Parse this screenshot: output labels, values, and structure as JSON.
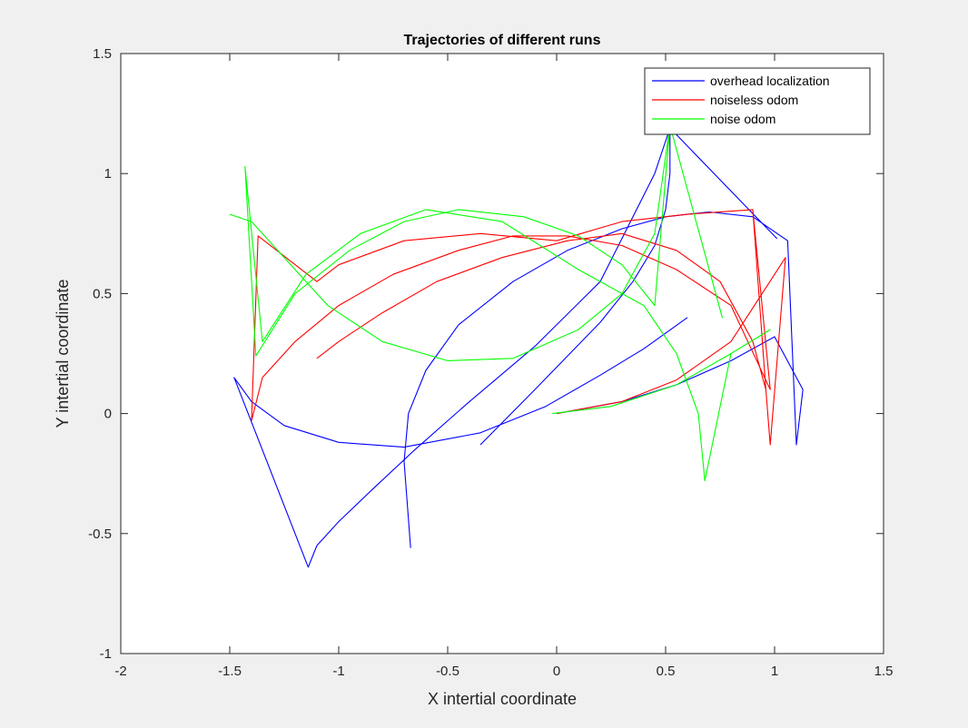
{
  "chart_data": {
    "type": "line",
    "title": "Trajectories of different runs",
    "xlabel": "X intertial coordinate",
    "ylabel": "Y intertial coordinate",
    "xlim": [
      -2,
      1.5
    ],
    "ylim": [
      -1,
      1.5
    ],
    "xticks": [
      -2,
      -1.5,
      -1,
      -0.5,
      0,
      0.5,
      1,
      1.5
    ],
    "yticks": [
      -1,
      -0.5,
      0,
      0.5,
      1,
      1.5
    ],
    "xtick_labels": [
      "-2",
      "-1.5",
      "-1",
      "-0.5",
      "0",
      "0.5",
      "1",
      "1.5"
    ],
    "ytick_labels": [
      "-1",
      "-0.5",
      "0",
      "0.5",
      "1",
      "1.5"
    ],
    "grid": false,
    "legend": "top-right",
    "series": [
      {
        "name": "overhead localization",
        "color": "#0000ff",
        "x": [
          0.0,
          0.3,
          0.55,
          0.8,
          1.0,
          1.13,
          1.1,
          1.06,
          0.9,
          0.7,
          0.5,
          0.3,
          0.05,
          -0.2,
          -0.45,
          -0.6,
          -0.68,
          -0.7,
          -0.67,
          -0.55,
          -0.35,
          -0.1,
          0.2,
          0.35,
          0.45,
          0.5,
          0.52,
          0.52,
          1.01,
          0.52,
          0.45,
          0.2,
          -0.1,
          -0.4,
          -0.65,
          -0.85,
          -1.0,
          -1.1,
          -1.14,
          -1.48,
          -1.4,
          -1.25,
          -1.0,
          -0.7,
          -0.35,
          -0.05,
          0.2,
          0.4,
          0.6
        ],
        "y": [
          0.0,
          0.05,
          0.12,
          0.22,
          0.32,
          0.1,
          -0.13,
          0.72,
          0.82,
          0.84,
          0.82,
          0.77,
          0.68,
          0.55,
          0.37,
          0.18,
          0.0,
          -0.2,
          -0.56,
          null,
          -0.13,
          0.1,
          0.38,
          0.55,
          0.7,
          0.85,
          1.0,
          1.19,
          0.73,
          1.19,
          1.0,
          0.55,
          0.28,
          0.05,
          -0.15,
          -0.32,
          -0.45,
          -0.55,
          -0.64,
          0.15,
          0.05,
          -0.05,
          -0.12,
          -0.14,
          -0.08,
          0.03,
          0.16,
          0.27,
          0.4
        ]
      },
      {
        "name": "noiseless odom",
        "color": "#ff0000",
        "x": [
          0.0,
          0.3,
          0.55,
          0.8,
          1.05,
          0.98,
          0.96,
          0.9,
          0.6,
          0.3,
          0.0,
          -0.35,
          -0.7,
          -1.0,
          -1.1,
          -1.37,
          -1.4,
          -1.35,
          -1.2,
          -1.0,
          -0.75,
          -0.45,
          -0.2,
          0.05,
          0.3,
          0.55,
          0.8,
          0.98,
          0.9,
          0.96,
          0.9,
          0.75,
          0.55,
          0.3,
          0.05,
          -0.25,
          -0.55,
          -0.8,
          -1.0,
          -1.1
        ],
        "y": [
          0.0,
          0.05,
          0.14,
          0.3,
          0.65,
          -0.13,
          0.1,
          0.85,
          0.83,
          0.8,
          0.72,
          0.75,
          0.72,
          0.62,
          0.55,
          0.74,
          -0.03,
          0.15,
          0.3,
          0.45,
          0.58,
          0.68,
          0.74,
          0.74,
          0.7,
          0.6,
          0.45,
          0.1,
          0.85,
          0.1,
          0.3,
          0.55,
          0.68,
          0.75,
          0.72,
          0.65,
          0.55,
          0.42,
          0.3,
          0.23
        ]
      },
      {
        "name": "noise odom",
        "color": "#00ff00",
        "x": [
          -0.02,
          0.25,
          0.55,
          0.8,
          0.98,
          0.8,
          0.68,
          0.65,
          0.55,
          0.4,
          0.1,
          -0.25,
          -0.6,
          -0.9,
          -1.15,
          -1.35,
          -1.43,
          -1.38,
          -1.2,
          -0.95,
          -0.7,
          -0.45,
          -0.15,
          0.1,
          0.3,
          0.45,
          0.52,
          0.76,
          0.52,
          0.45,
          0.3,
          0.1,
          -0.2,
          -0.5,
          -0.8,
          -1.05,
          -1.25,
          -1.4,
          -1.5
        ],
        "y": [
          0.0,
          0.03,
          0.12,
          0.25,
          0.35,
          0.25,
          -0.28,
          0.0,
          0.25,
          0.45,
          0.6,
          0.8,
          0.85,
          0.75,
          0.58,
          0.3,
          1.03,
          0.24,
          0.5,
          0.68,
          0.8,
          0.85,
          0.82,
          0.74,
          0.62,
          0.45,
          1.2,
          0.4,
          1.2,
          0.75,
          0.5,
          0.35,
          0.23,
          0.22,
          0.3,
          0.45,
          0.65,
          0.8,
          0.83
        ]
      }
    ]
  }
}
